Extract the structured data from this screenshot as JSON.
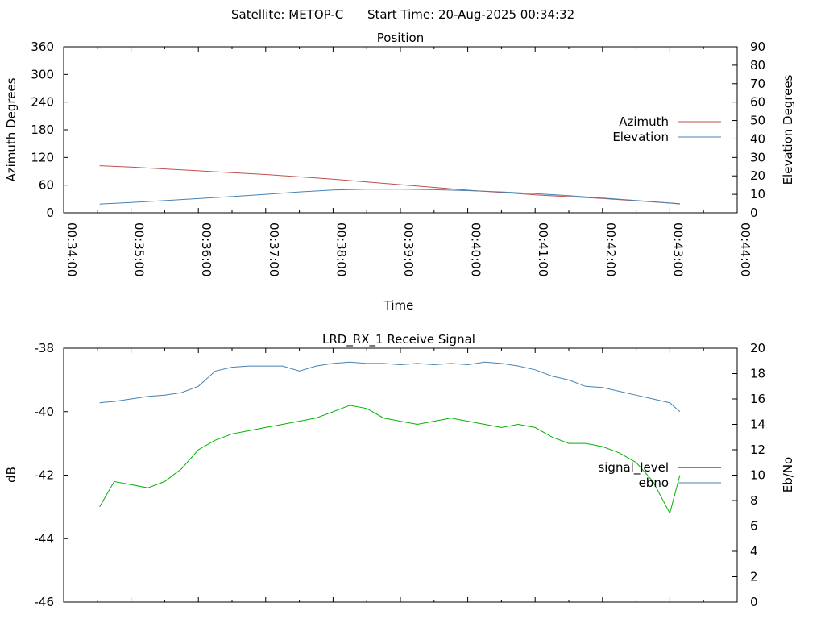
{
  "header": {
    "satellite": "Satellite: METOP-C",
    "start_time": "Start Time: 20-Aug-2025 00:34:32"
  },
  "chart_data": [
    {
      "type": "line",
      "title": "Position",
      "xlabel": "Time",
      "ylabel": "Azimuth Degrees",
      "y2label": "Elevation Degrees",
      "xlim": [
        "00:34:00",
        "00:44:00"
      ],
      "ylim": [
        0,
        360
      ],
      "y2lim": [
        0,
        90
      ],
      "x_ticks": [
        "00:34:00",
        "00:35:00",
        "00:36:00",
        "00:37:00",
        "00:38:00",
        "00:39:00",
        "00:40:00",
        "00:41:00",
        "00:42:00",
        "00:43:00",
        "00:44:00"
      ],
      "y_ticks": [
        0,
        60,
        120,
        180,
        240,
        300,
        360
      ],
      "y2_ticks": [
        0,
        10,
        20,
        30,
        40,
        50,
        60,
        70,
        80,
        90
      ],
      "legend_position": "right",
      "series": [
        {
          "name": "Azimuth",
          "axis": "left",
          "color": "#c0504d",
          "x": [
            "00:34:32",
            "00:35:00",
            "00:35:30",
            "00:36:00",
            "00:36:30",
            "00:37:00",
            "00:37:30",
            "00:38:00",
            "00:38:30",
            "00:39:00",
            "00:39:30",
            "00:40:00",
            "00:40:30",
            "00:41:00",
            "00:41:30",
            "00:42:00",
            "00:42:30",
            "00:43:00",
            "00:43:09"
          ],
          "y": [
            102,
            99,
            95,
            91,
            87,
            83,
            78,
            73,
            67,
            61,
            55,
            49,
            44,
            39,
            35,
            31,
            26,
            21,
            19
          ]
        },
        {
          "name": "Elevation",
          "axis": "right",
          "color": "#4682b4",
          "x": [
            "00:34:32",
            "00:35:00",
            "00:35:30",
            "00:36:00",
            "00:36:30",
            "00:37:00",
            "00:37:30",
            "00:38:00",
            "00:38:30",
            "00:39:00",
            "00:39:30",
            "00:40:00",
            "00:40:30",
            "00:41:00",
            "00:41:30",
            "00:42:00",
            "00:42:30",
            "00:43:00",
            "00:43:09"
          ],
          "y": [
            4.7,
            5.6,
            6.6,
            7.7,
            8.8,
            10.0,
            11.3,
            12.3,
            12.8,
            12.8,
            12.5,
            12.0,
            11.3,
            10.4,
            9.3,
            8.0,
            6.7,
            5.3,
            4.9
          ]
        }
      ]
    },
    {
      "type": "line",
      "title": "LRD_RX_1 Receive Signal",
      "ylabel": "dB",
      "y2label": "Eb/No",
      "xlim": [
        "00:34:00",
        "00:44:00"
      ],
      "ylim": [
        -46,
        -38
      ],
      "y2lim": [
        0,
        20
      ],
      "y_ticks": [
        -46,
        -44,
        -42,
        -40,
        -38
      ],
      "y2_ticks": [
        0,
        2,
        4,
        6,
        8,
        10,
        12,
        14,
        16,
        18,
        20
      ],
      "legend_position": "right",
      "series": [
        {
          "name": "signal_level",
          "axis": "left",
          "color": "#00b400",
          "legend_color": "#000000",
          "x": [
            "00:34:32",
            "00:34:45",
            "00:35:00",
            "00:35:15",
            "00:35:30",
            "00:35:45",
            "00:36:00",
            "00:36:15",
            "00:36:30",
            "00:36:45",
            "00:37:00",
            "00:37:15",
            "00:37:30",
            "00:37:45",
            "00:38:00",
            "00:38:15",
            "00:38:30",
            "00:38:45",
            "00:39:00",
            "00:39:15",
            "00:39:30",
            "00:39:45",
            "00:40:00",
            "00:40:15",
            "00:40:30",
            "00:40:45",
            "00:41:00",
            "00:41:15",
            "00:41:30",
            "00:41:45",
            "00:42:00",
            "00:42:15",
            "00:42:30",
            "00:42:45",
            "00:43:00",
            "00:43:09"
          ],
          "y": [
            -43.0,
            -42.2,
            -42.3,
            -42.4,
            -42.2,
            -41.8,
            -41.2,
            -40.9,
            -40.7,
            -40.6,
            -40.5,
            -40.4,
            -40.3,
            -40.2,
            -40.0,
            -39.8,
            -39.9,
            -40.2,
            -40.3,
            -40.4,
            -40.3,
            -40.2,
            -40.3,
            -40.4,
            -40.5,
            -40.4,
            -40.5,
            -40.8,
            -41.0,
            -41.0,
            -41.1,
            -41.3,
            -41.6,
            -42.2,
            -43.2,
            -42.0
          ]
        },
        {
          "name": "ebno",
          "axis": "right",
          "color": "#4682b4",
          "x": [
            "00:34:32",
            "00:34:45",
            "00:35:00",
            "00:35:15",
            "00:35:30",
            "00:35:45",
            "00:36:00",
            "00:36:15",
            "00:36:30",
            "00:36:45",
            "00:37:00",
            "00:37:15",
            "00:37:30",
            "00:37:45",
            "00:38:00",
            "00:38:15",
            "00:38:30",
            "00:38:45",
            "00:39:00",
            "00:39:15",
            "00:39:30",
            "00:39:45",
            "00:40:00",
            "00:40:15",
            "00:40:30",
            "00:40:45",
            "00:41:00",
            "00:41:15",
            "00:41:30",
            "00:41:45",
            "00:42:00",
            "00:42:15",
            "00:42:30",
            "00:42:45",
            "00:43:00",
            "00:43:09"
          ],
          "y": [
            15.7,
            15.8,
            16.0,
            16.2,
            16.3,
            16.5,
            17.0,
            18.2,
            18.5,
            18.6,
            18.6,
            18.6,
            18.2,
            18.6,
            18.8,
            18.9,
            18.8,
            18.8,
            18.7,
            18.8,
            18.7,
            18.8,
            18.7,
            18.9,
            18.8,
            18.6,
            18.3,
            17.8,
            17.5,
            17.0,
            16.9,
            16.6,
            16.3,
            16.0,
            15.7,
            15.0
          ]
        }
      ]
    }
  ]
}
